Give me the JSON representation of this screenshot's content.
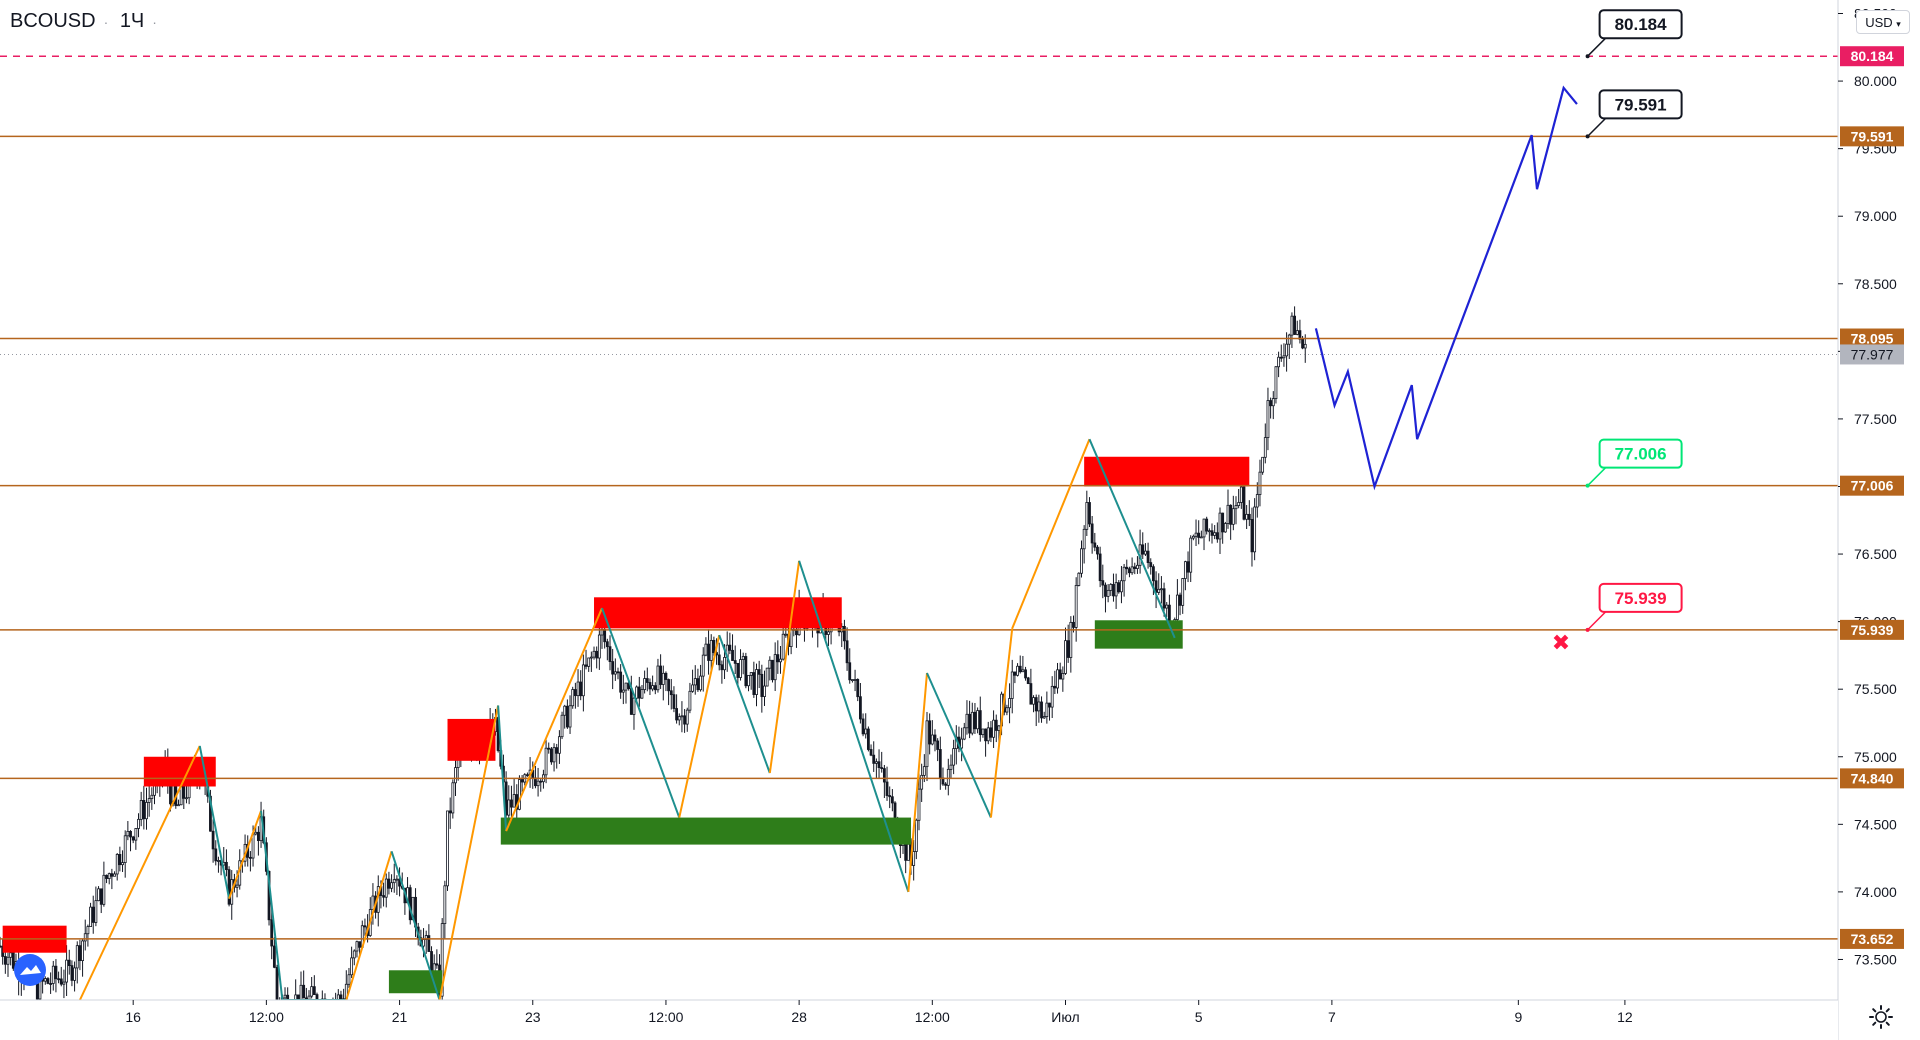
{
  "header": {
    "symbol": "BCOUSD",
    "interval": "1Ч"
  },
  "price_scale": {
    "currency": "USD"
  },
  "icons": {
    "settings": "gear-icon",
    "logo": "tradingview-logo-icon",
    "currency_menu": "chevron-down-icon"
  },
  "colors": {
    "level_line": "#b5651d",
    "target_line": "#e91e63",
    "forecast": "#1e22d4",
    "supply_zone": "#ff0000",
    "demand_zone": "#2e7d1a",
    "zigzag_up": "#ff9800",
    "zigzag_down": "#1e8f8f",
    "label_green": "#00e676",
    "label_red": "#ff1744"
  },
  "chart_data": {
    "type": "line",
    "title": "",
    "xlabel": "",
    "ylabel": "",
    "ylim": [
      73.2,
      80.6
    ],
    "grid": false,
    "y_ticks": [
      "73.500",
      "74.000",
      "74.500",
      "75.000",
      "75.500",
      "76.000",
      "76.500",
      "77.000",
      "77.500",
      "78.000",
      "78.500",
      "79.000",
      "79.500",
      "80.000",
      "80.500"
    ],
    "x_ticks": [
      {
        "label": "16",
        "bar": 50
      },
      {
        "label": "12:00",
        "bar": 100
      },
      {
        "label": "21",
        "bar": 150
      },
      {
        "label": "23",
        "bar": 200
      },
      {
        "label": "12:00",
        "bar": 250
      },
      {
        "label": "28",
        "bar": 300
      },
      {
        "label": "12:00",
        "bar": 350
      },
      {
        "label": "Июл",
        "bar": 400
      },
      {
        "label": "5",
        "bar": 450
      },
      {
        "label": "7",
        "bar": 500
      },
      {
        "label": "9",
        "bar": 570
      },
      {
        "label": "12",
        "bar": 610
      }
    ],
    "bar_range": [
      0,
      690
    ],
    "horizontal_levels": [
      {
        "price": 80.184,
        "label": "80.184",
        "style": "dashed",
        "color": "#e91e63"
      },
      {
        "price": 79.591,
        "label": "79.591",
        "style": "solid",
        "color": "#b5651d"
      },
      {
        "price": 78.095,
        "label": "78.095",
        "style": "solid",
        "color": "#b5651d"
      },
      {
        "price": 77.006,
        "label": "77.006",
        "style": "solid",
        "color": "#b5651d"
      },
      {
        "price": 75.939,
        "label": "75.939",
        "style": "solid",
        "color": "#b5651d"
      },
      {
        "price": 74.84,
        "label": "74.840",
        "style": "solid",
        "color": "#b5651d"
      },
      {
        "price": 73.652,
        "label": "73.652",
        "style": "solid",
        "color": "#b5651d"
      }
    ],
    "last_price": {
      "price": 77.977,
      "label": "77.977"
    },
    "callouts": [
      {
        "text": "80.184",
        "price": 80.184,
        "bar": 596,
        "color": "#131722"
      },
      {
        "text": "79.591",
        "price": 79.591,
        "bar": 596,
        "color": "#131722"
      },
      {
        "text": "77.006",
        "price": 77.006,
        "bar": 596,
        "color": "#00e676"
      },
      {
        "text": "75.939",
        "price": 75.939,
        "bar": 596,
        "color": "#ff1744"
      }
    ],
    "zones": [
      {
        "kind": "supply",
        "bar_from": 1,
        "bar_to": 25,
        "price_top": 73.75,
        "price_bottom": 73.55
      },
      {
        "kind": "supply",
        "bar_from": 54,
        "bar_to": 81,
        "price_top": 75.0,
        "price_bottom": 74.78
      },
      {
        "kind": "supply",
        "bar_from": 168,
        "bar_to": 186,
        "price_top": 75.28,
        "price_bottom": 74.97
      },
      {
        "kind": "supply",
        "bar_from": 223,
        "bar_to": 316,
        "price_top": 76.18,
        "price_bottom": 75.95
      },
      {
        "kind": "supply",
        "bar_from": 407,
        "bar_to": 469,
        "price_top": 77.22,
        "price_bottom": 77.0
      },
      {
        "kind": "demand",
        "bar_from": 188,
        "bar_to": 342,
        "price_top": 74.55,
        "price_bottom": 74.35
      },
      {
        "kind": "demand",
        "bar_from": 411,
        "bar_to": 444,
        "price_top": 76.01,
        "price_bottom": 75.8
      },
      {
        "kind": "demand",
        "bar_from": 146,
        "bar_to": 166,
        "price_top": 73.42,
        "price_bottom": 73.25
      }
    ],
    "zigzag": [
      {
        "bar": 30,
        "price": 73.2
      },
      {
        "bar": 75,
        "price": 75.08
      },
      {
        "bar": 86,
        "price": 73.95
      },
      {
        "bar": 98,
        "price": 74.6
      },
      {
        "bar": 106,
        "price": 73.2
      },
      {
        "bar": 130,
        "price": 73.2
      },
      {
        "bar": 147,
        "price": 74.3
      },
      {
        "bar": 165,
        "price": 73.2
      },
      {
        "bar": 187,
        "price": 75.38
      },
      {
        "bar": 190,
        "price": 74.45
      },
      {
        "bar": 226,
        "price": 76.1
      },
      {
        "bar": 255,
        "price": 74.55
      },
      {
        "bar": 270,
        "price": 75.9
      },
      {
        "bar": 289,
        "price": 74.88
      },
      {
        "bar": 300,
        "price": 76.45
      },
      {
        "bar": 341,
        "price": 74.0
      },
      {
        "bar": 348,
        "price": 75.62
      },
      {
        "bar": 372,
        "price": 74.55
      },
      {
        "bar": 380,
        "price": 75.95
      },
      {
        "bar": 409,
        "price": 77.35
      },
      {
        "bar": 441,
        "price": 75.88
      }
    ],
    "forecast_path": [
      {
        "bar": 494,
        "price": 78.17
      },
      {
        "bar": 501,
        "price": 77.6
      },
      {
        "bar": 506,
        "price": 77.85
      },
      {
        "bar": 516,
        "price": 77.0
      },
      {
        "bar": 530,
        "price": 77.75
      },
      {
        "bar": 532,
        "price": 77.35
      },
      {
        "bar": 575,
        "price": 79.6
      },
      {
        "bar": 577,
        "price": 79.2
      },
      {
        "bar": 587,
        "price": 79.95
      },
      {
        "bar": 592,
        "price": 79.83
      }
    ],
    "invalidation_marker": {
      "bar": 586,
      "price": 75.85,
      "symbol": "✖"
    },
    "candles_anchor": [
      {
        "bar": 0,
        "price": 73.6
      },
      {
        "bar": 14,
        "price": 73.3
      },
      {
        "bar": 26,
        "price": 73.4
      },
      {
        "bar": 40,
        "price": 74.1
      },
      {
        "bar": 56,
        "price": 74.7
      },
      {
        "bar": 62,
        "price": 74.9
      },
      {
        "bar": 66,
        "price": 74.6
      },
      {
        "bar": 75,
        "price": 74.95
      },
      {
        "bar": 80,
        "price": 74.4
      },
      {
        "bar": 86,
        "price": 74.0
      },
      {
        "bar": 98,
        "price": 74.5
      },
      {
        "bar": 104,
        "price": 73.2
      },
      {
        "bar": 128,
        "price": 73.2
      },
      {
        "bar": 136,
        "price": 73.7
      },
      {
        "bar": 148,
        "price": 74.2
      },
      {
        "bar": 156,
        "price": 73.8
      },
      {
        "bar": 165,
        "price": 73.3
      },
      {
        "bar": 168,
        "price": 74.5
      },
      {
        "bar": 172,
        "price": 75.0
      },
      {
        "bar": 186,
        "price": 75.2
      },
      {
        "bar": 190,
        "price": 74.6
      },
      {
        "bar": 206,
        "price": 75.0
      },
      {
        "bar": 226,
        "price": 75.9
      },
      {
        "bar": 236,
        "price": 75.4
      },
      {
        "bar": 246,
        "price": 75.6
      },
      {
        "bar": 256,
        "price": 75.3
      },
      {
        "bar": 266,
        "price": 75.8
      },
      {
        "bar": 276,
        "price": 75.7
      },
      {
        "bar": 286,
        "price": 75.5
      },
      {
        "bar": 300,
        "price": 76.05
      },
      {
        "bar": 315,
        "price": 75.95
      },
      {
        "bar": 325,
        "price": 75.2
      },
      {
        "bar": 335,
        "price": 74.6
      },
      {
        "bar": 342,
        "price": 74.2
      },
      {
        "bar": 348,
        "price": 75.2
      },
      {
        "bar": 356,
        "price": 74.8
      },
      {
        "bar": 362,
        "price": 75.3
      },
      {
        "bar": 372,
        "price": 75.2
      },
      {
        "bar": 382,
        "price": 75.6
      },
      {
        "bar": 392,
        "price": 75.3
      },
      {
        "bar": 402,
        "price": 75.9
      },
      {
        "bar": 408,
        "price": 76.9
      },
      {
        "bar": 414,
        "price": 76.2
      },
      {
        "bar": 420,
        "price": 76.3
      },
      {
        "bar": 430,
        "price": 76.5
      },
      {
        "bar": 440,
        "price": 76.0
      },
      {
        "bar": 448,
        "price": 76.6
      },
      {
        "bar": 456,
        "price": 76.7
      },
      {
        "bar": 466,
        "price": 76.9
      },
      {
        "bar": 470,
        "price": 76.6
      },
      {
        "bar": 476,
        "price": 77.6
      },
      {
        "bar": 482,
        "price": 78.05
      },
      {
        "bar": 486,
        "price": 78.2
      },
      {
        "bar": 490,
        "price": 77.98
      }
    ]
  }
}
